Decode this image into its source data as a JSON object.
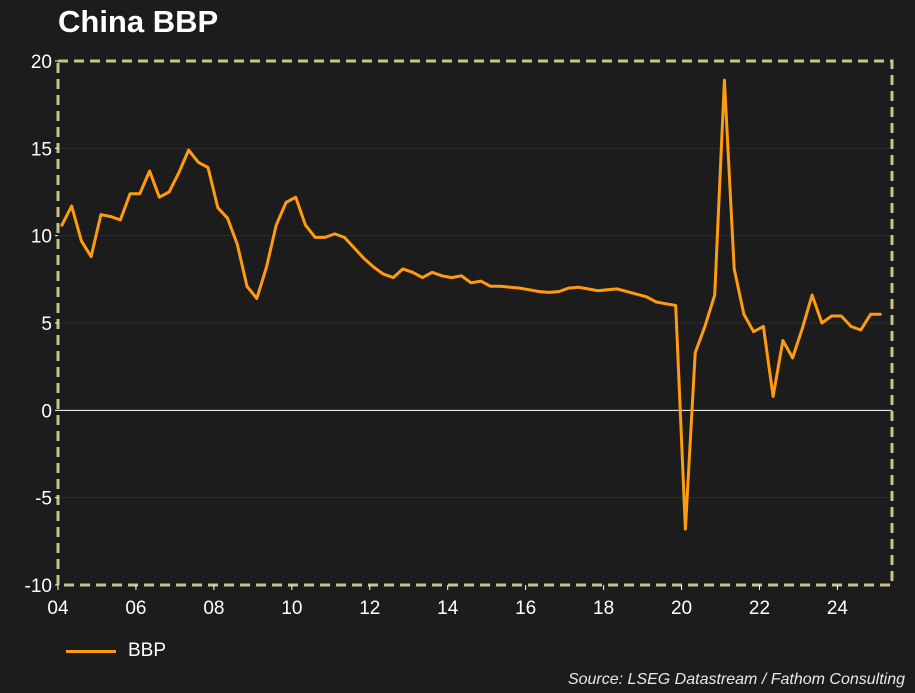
{
  "chart_data": {
    "type": "line",
    "title": "China BBP",
    "xlabel": "",
    "ylabel": "",
    "x_tick_labels": [
      "04",
      "06",
      "08",
      "10",
      "12",
      "14",
      "16",
      "18",
      "20",
      "22",
      "24"
    ],
    "x_tick_years": [
      2004,
      2006,
      2008,
      2010,
      2012,
      2014,
      2016,
      2018,
      2020,
      2022,
      2024
    ],
    "xlim": [
      2004,
      2025.4
    ],
    "ylim": [
      -10,
      20
    ],
    "y_ticks": [
      20,
      15,
      10,
      5,
      0,
      -5,
      -10
    ],
    "grid": true,
    "zero_line": true,
    "legend_position": "bottom-left",
    "source": "Source: LSEG Datastream / Fathom Consulting",
    "colors": {
      "background": "#1c1c1c",
      "series": "#ff9b0f",
      "frame": "#c9c48a",
      "zero_line": "#ffffff"
    },
    "series": [
      {
        "name": "BBP",
        "x": [
          2004.1,
          2004.35,
          2004.6,
          2004.85,
          2005.1,
          2005.35,
          2005.6,
          2005.85,
          2006.1,
          2006.35,
          2006.6,
          2006.85,
          2007.1,
          2007.35,
          2007.6,
          2007.85,
          2008.1,
          2008.35,
          2008.6,
          2008.85,
          2009.1,
          2009.35,
          2009.6,
          2009.85,
          2010.1,
          2010.35,
          2010.6,
          2010.85,
          2011.1,
          2011.35,
          2011.6,
          2011.85,
          2012.1,
          2012.35,
          2012.6,
          2012.85,
          2013.1,
          2013.35,
          2013.6,
          2013.85,
          2014.1,
          2014.35,
          2014.6,
          2014.85,
          2015.1,
          2015.35,
          2015.6,
          2015.85,
          2016.1,
          2016.35,
          2016.6,
          2016.85,
          2017.1,
          2017.35,
          2017.6,
          2017.85,
          2018.1,
          2018.35,
          2018.6,
          2018.85,
          2019.1,
          2019.35,
          2019.6,
          2019.85,
          2020.1,
          2020.35,
          2020.6,
          2020.85,
          2021.1,
          2021.35,
          2021.6,
          2021.85,
          2022.1,
          2022.35,
          2022.6,
          2022.85,
          2023.1,
          2023.35,
          2023.6,
          2023.85,
          2024.1,
          2024.35,
          2024.6,
          2024.85,
          2025.1
        ],
        "values": [
          10.6,
          11.7,
          9.7,
          8.8,
          11.2,
          11.1,
          10.9,
          12.4,
          12.4,
          13.7,
          12.2,
          12.5,
          13.6,
          14.9,
          14.2,
          13.9,
          11.6,
          11.0,
          9.5,
          7.1,
          6.4,
          8.2,
          10.6,
          11.9,
          12.2,
          10.6,
          9.9,
          9.9,
          10.1,
          9.9,
          9.3,
          8.7,
          8.2,
          7.8,
          7.6,
          8.1,
          7.9,
          7.6,
          7.9,
          7.7,
          7.6,
          7.7,
          7.3,
          7.4,
          7.1,
          7.1,
          7.05,
          7.0,
          6.9,
          6.8,
          6.75,
          6.8,
          7.0,
          7.05,
          6.95,
          6.85,
          6.9,
          6.95,
          6.8,
          6.65,
          6.5,
          6.2,
          6.1,
          6.0,
          -6.8,
          3.3,
          4.8,
          6.6,
          18.9,
          8.1,
          5.5,
          4.5,
          4.8,
          0.8,
          4.0,
          3.0,
          4.7,
          6.6,
          5.0,
          5.4,
          5.4,
          4.8,
          4.6,
          5.5,
          5.5
        ]
      }
    ]
  }
}
